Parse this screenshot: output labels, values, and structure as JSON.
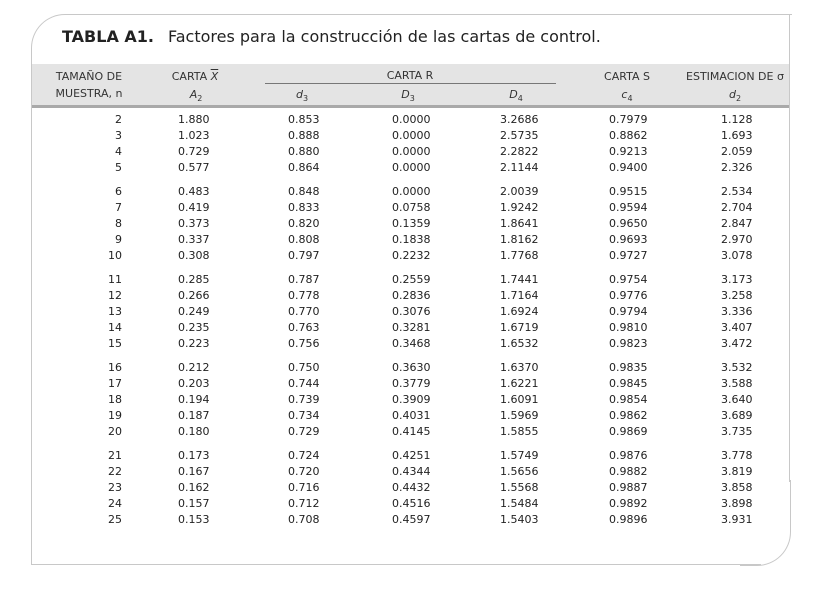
{
  "table": {
    "label": "TABLA A1.",
    "title": "Factores para la construcción de las cartas de control.",
    "headers": {
      "n_line1": "TAMAÑO DE",
      "n_line2": "MUESTRA, n",
      "xbar_prefix": "CARTA ",
      "xbar_symbol": "X",
      "a2_base": "A",
      "a2_sub": "2",
      "r_group": "CARTA R",
      "d3_base": "d",
      "d3_sub": "3",
      "D3_base": "D",
      "D3_sub": "3",
      "D4_base": "D",
      "D4_sub": "4",
      "s_group": "CARTA S",
      "c4_base": "c",
      "c4_sub": "4",
      "sigma_group": "ESTIMACION DE σ",
      "d2_base": "d",
      "d2_sub": "2"
    },
    "groups": [
      [
        [
          "2",
          "1.880",
          "0.853",
          "0.0000",
          "3.2686",
          "0.7979",
          "1.128"
        ],
        [
          "3",
          "1.023",
          "0.888",
          "0.0000",
          "2.5735",
          "0.8862",
          "1.693"
        ],
        [
          "4",
          "0.729",
          "0.880",
          "0.0000",
          "2.2822",
          "0.9213",
          "2.059"
        ],
        [
          "5",
          "0.577",
          "0.864",
          "0.0000",
          "2.1144",
          "0.9400",
          "2.326"
        ]
      ],
      [
        [
          "6",
          "0.483",
          "0.848",
          "0.0000",
          "2.0039",
          "0.9515",
          "2.534"
        ],
        [
          "7",
          "0.419",
          "0.833",
          "0.0758",
          "1.9242",
          "0.9594",
          "2.704"
        ],
        [
          "8",
          "0.373",
          "0.820",
          "0.1359",
          "1.8641",
          "0.9650",
          "2.847"
        ],
        [
          "9",
          "0.337",
          "0.808",
          "0.1838",
          "1.8162",
          "0.9693",
          "2.970"
        ],
        [
          "10",
          "0.308",
          "0.797",
          "0.2232",
          "1.7768",
          "0.9727",
          "3.078"
        ]
      ],
      [
        [
          "11",
          "0.285",
          "0.787",
          "0.2559",
          "1.7441",
          "0.9754",
          "3.173"
        ],
        [
          "12",
          "0.266",
          "0.778",
          "0.2836",
          "1.7164",
          "0.9776",
          "3.258"
        ],
        [
          "13",
          "0.249",
          "0.770",
          "0.3076",
          "1.6924",
          "0.9794",
          "3.336"
        ],
        [
          "14",
          "0.235",
          "0.763",
          "0.3281",
          "1.6719",
          "0.9810",
          "3.407"
        ],
        [
          "15",
          "0.223",
          "0.756",
          "0.3468",
          "1.6532",
          "0.9823",
          "3.472"
        ]
      ],
      [
        [
          "16",
          "0.212",
          "0.750",
          "0.3630",
          "1.6370",
          "0.9835",
          "3.532"
        ],
        [
          "17",
          "0.203",
          "0.744",
          "0.3779",
          "1.6221",
          "0.9845",
          "3.588"
        ],
        [
          "18",
          "0.194",
          "0.739",
          "0.3909",
          "1.6091",
          "0.9854",
          "3.640"
        ],
        [
          "19",
          "0.187",
          "0.734",
          "0.4031",
          "1.5969",
          "0.9862",
          "3.689"
        ],
        [
          "20",
          "0.180",
          "0.729",
          "0.4145",
          "1.5855",
          "0.9869",
          "3.735"
        ]
      ],
      [
        [
          "21",
          "0.173",
          "0.724",
          "0.4251",
          "1.5749",
          "0.9876",
          "3.778"
        ],
        [
          "22",
          "0.167",
          "0.720",
          "0.4344",
          "1.5656",
          "0.9882",
          "3.819"
        ],
        [
          "23",
          "0.162",
          "0.716",
          "0.4432",
          "1.5568",
          "0.9887",
          "3.858"
        ],
        [
          "24",
          "0.157",
          "0.712",
          "0.4516",
          "1.5484",
          "0.9892",
          "3.898"
        ],
        [
          "25",
          "0.153",
          "0.708",
          "0.4597",
          "1.5403",
          "0.9896",
          "3.931"
        ]
      ]
    ]
  }
}
